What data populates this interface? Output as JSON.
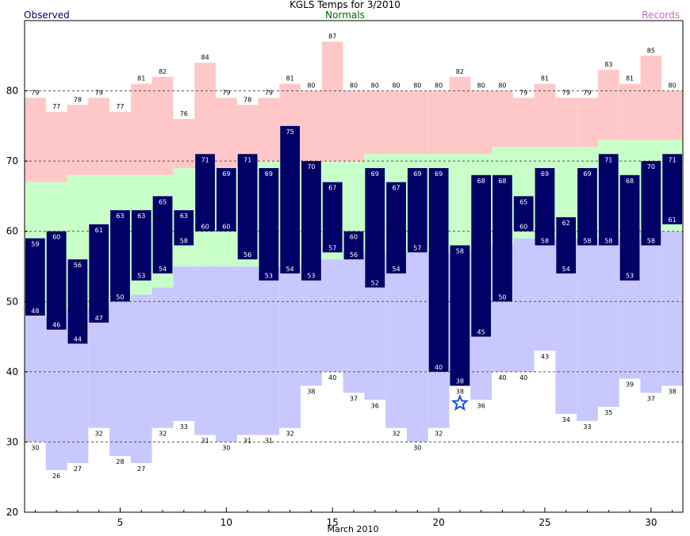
{
  "chart_data": {
    "type": "bar",
    "title": "KGLS Temps for 3/2010",
    "xlabel": "March 2010",
    "ylabel": "",
    "legend": {
      "observed": "Observed",
      "normals": "Normals",
      "records": "Records"
    },
    "ylim": [
      20,
      90
    ],
    "xlim": [
      0.5,
      31.5
    ],
    "yticks": [
      20,
      30,
      40,
      50,
      60,
      70,
      80
    ],
    "xticks": [
      5,
      10,
      15,
      20,
      25,
      30
    ],
    "grid_lines": [
      30,
      40,
      50,
      60,
      70,
      80
    ],
    "days": [
      1,
      2,
      3,
      4,
      5,
      6,
      7,
      8,
      9,
      10,
      11,
      12,
      13,
      14,
      15,
      16,
      17,
      18,
      19,
      20,
      21,
      22,
      23,
      24,
      25,
      26,
      27,
      28,
      29,
      30,
      31
    ],
    "observed_high": [
      59,
      60,
      56,
      61,
      63,
      63,
      65,
      63,
      71,
      69,
      71,
      69,
      75,
      70,
      67,
      60,
      69,
      67,
      69,
      69,
      58,
      68,
      68,
      65,
      69,
      62,
      69,
      71,
      68,
      70,
      71
    ],
    "observed_low": [
      48,
      46,
      44,
      47,
      50,
      53,
      54,
      58,
      60,
      60,
      56,
      53,
      54,
      53,
      57,
      56,
      52,
      54,
      57,
      40,
      38,
      45,
      50,
      60,
      58,
      54,
      58,
      58,
      53,
      58,
      61
    ],
    "normal_high": [
      67,
      67,
      68,
      68,
      68,
      68,
      68,
      69,
      69,
      69,
      69,
      70,
      70,
      70,
      70,
      70,
      71,
      71,
      71,
      71,
      71,
      71,
      72,
      72,
      72,
      72,
      72,
      73,
      73,
      73,
      73
    ],
    "normal_low": [
      48,
      48,
      49,
      49,
      50,
      51,
      52,
      55,
      55,
      55,
      55,
      55,
      55,
      56,
      56,
      57,
      57,
      57,
      57,
      57,
      57,
      58,
      58,
      59,
      59,
      59,
      59,
      59,
      59,
      60,
      60
    ],
    "record_high": [
      79,
      77,
      78,
      79,
      77,
      81,
      82,
      76,
      84,
      79,
      78,
      79,
      81,
      80,
      87,
      80,
      80,
      80,
      80,
      80,
      82,
      80,
      80,
      79,
      81,
      79,
      79,
      83,
      81,
      85,
      80
    ],
    "record_low": [
      30,
      26,
      27,
      32,
      28,
      27,
      32,
      33,
      31,
      30,
      31,
      31,
      32,
      38,
      40,
      37,
      36,
      32,
      30,
      32,
      38,
      36,
      40,
      40,
      43,
      34,
      33,
      35,
      39,
      37,
      38
    ],
    "current_marker": {
      "day": 21,
      "value": 35.5,
      "color": "#1E4FE0"
    },
    "colors": {
      "record_high_fill": "#FFC8C8",
      "normal_fill": "#C8FFC8",
      "record_low_fill": "#C8C8FF",
      "observed_bar": "#000066",
      "observed_label": "#000066",
      "normals_label": "#006600",
      "records_label": "#CC66CC",
      "gridline": "#555555"
    }
  }
}
